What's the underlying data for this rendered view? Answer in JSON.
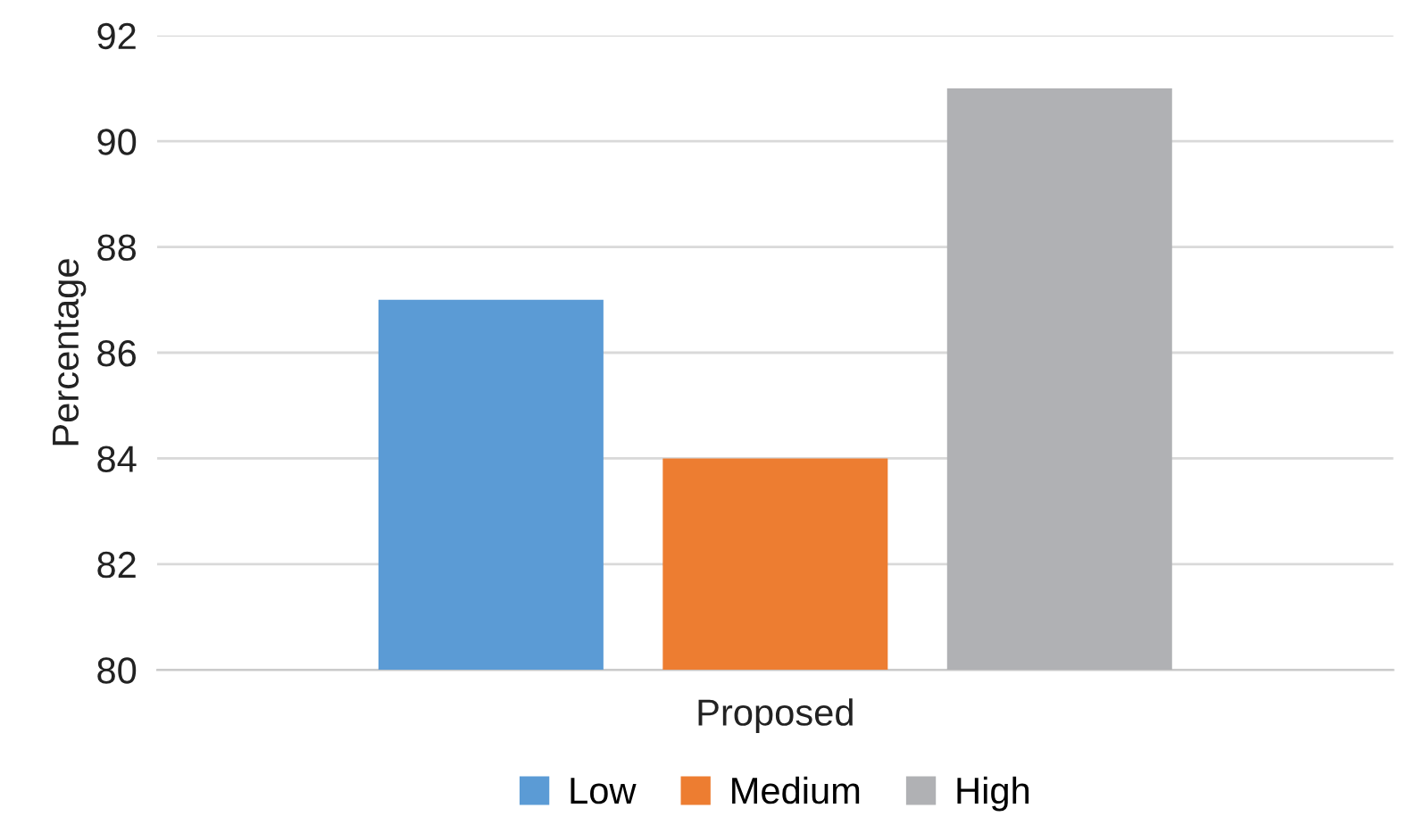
{
  "chart_data": {
    "type": "bar",
    "ylabel": "Percentage",
    "xlabel": "Proposed",
    "categories": [
      null
    ],
    "series": [
      {
        "name": "Low",
        "color": "#5b9bd5",
        "values": [
          87
        ]
      },
      {
        "name": "Medium",
        "color": "#ed7d31",
        "values": [
          84
        ]
      },
      {
        "name": "High",
        "color": "#b0b1b4",
        "values": [
          91
        ]
      }
    ],
    "ylim": [
      80,
      92
    ],
    "yticks": [
      80,
      82,
      84,
      86,
      88,
      90,
      92
    ],
    "grid": "y",
    "legend": "bottom"
  }
}
